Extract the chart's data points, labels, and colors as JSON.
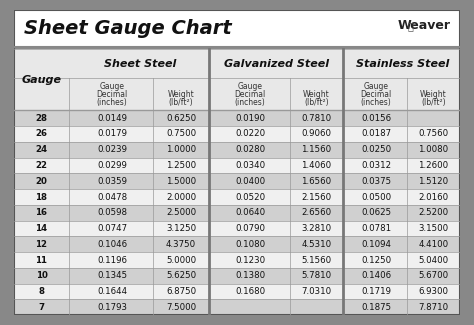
{
  "title": "Sheet Gauge Chart",
  "gauges": [
    "28",
    "26",
    "24",
    "22",
    "20",
    "18",
    "16",
    "14",
    "12",
    "11",
    "10",
    "8",
    "7"
  ],
  "sheet_steel_dec": [
    "0.0149",
    "0.0179",
    "0.0239",
    "0.0299",
    "0.0359",
    "0.0478",
    "0.0598",
    "0.0747",
    "0.1046",
    "0.1196",
    "0.1345",
    "0.1644",
    "0.1793"
  ],
  "sheet_steel_wt": [
    "0.6250",
    "0.7500",
    "1.0000",
    "1.2500",
    "1.5000",
    "2.0000",
    "2.5000",
    "3.1250",
    "4.3750",
    "5.0000",
    "5.6250",
    "6.8750",
    "7.5000"
  ],
  "galv_dec": [
    "0.0190",
    "0.0220",
    "0.0280",
    "0.0340",
    "0.0400",
    "0.0520",
    "0.0640",
    "0.0790",
    "0.1080",
    "0.1230",
    "0.1380",
    "0.1680",
    ""
  ],
  "galv_wt": [
    "0.7810",
    "0.9060",
    "1.1560",
    "1.4060",
    "1.6560",
    "2.1560",
    "2.6560",
    "3.2810",
    "4.5310",
    "5.1560",
    "5.7810",
    "7.0310",
    ""
  ],
  "ss_dec": [
    "0.0156",
    "0.0187",
    "0.0250",
    "0.0312",
    "0.0375",
    "0.0500",
    "0.0625",
    "0.0781",
    "0.1094",
    "0.1250",
    "0.1406",
    "0.1719",
    "0.1875"
  ],
  "ss_wt": [
    "",
    "0.7560",
    "1.0080",
    "1.2600",
    "1.5120",
    "2.0160",
    "2.5200",
    "3.1500",
    "4.4100",
    "5.0400",
    "5.6700",
    "6.9300",
    "7.8710"
  ],
  "outer_bg": "#888888",
  "title_bg": "#ffffff",
  "table_bg": "#f2f2f2",
  "row_dark": "#d0d0d0",
  "row_light": "#f0f0f0",
  "header_bg": "#e8e8e8",
  "divider_col": "#999999",
  "border_col": "#555555"
}
